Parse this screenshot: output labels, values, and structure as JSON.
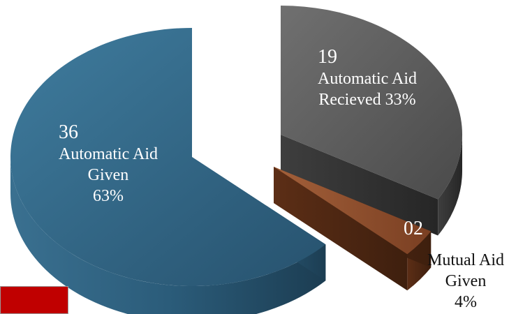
{
  "chart_data": {
    "type": "pie",
    "style": "3d-exploded",
    "slices": [
      {
        "number": "36",
        "line1": "Automatic Aid",
        "line2": "Given",
        "line3": "63%",
        "value": 36,
        "percent": 63,
        "color": "#2e6080"
      },
      {
        "number": "19",
        "line1": "Automatic Aid",
        "line2": "Recieved 33%",
        "value": 19,
        "percent": 33,
        "color": "#5a5a5a"
      },
      {
        "number": "02",
        "line1": "Mutual Aid",
        "line2": "Given",
        "line3": "4%",
        "value": 2,
        "percent": 4,
        "color": "#8b4a2a"
      }
    ]
  },
  "legend_swatch": {
    "color": "#c00000"
  }
}
